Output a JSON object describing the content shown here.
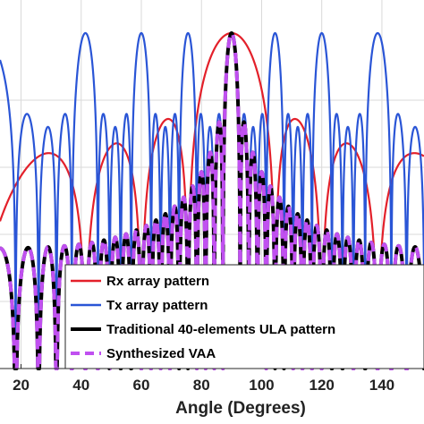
{
  "chart_data": {
    "type": "line",
    "title": "",
    "xlabel": "Angle (Degrees)",
    "ylabel": "",
    "xlim": [
      13,
      154
    ],
    "ylim": [
      -50,
      2
    ],
    "xticks": [
      20,
      40,
      60,
      80,
      100,
      120,
      140
    ],
    "xtick_labels": [
      "20",
      "40",
      "60",
      "80",
      "100",
      "120",
      "140"
    ],
    "grid": true,
    "legend_position": "bottom-right",
    "series": [
      {
        "name": "Rx array pattern",
        "color": "#e3202a",
        "style": "solid",
        "elements": 8,
        "spacing_wavelengths": 0.5,
        "floor_db": -50
      },
      {
        "name": "Tx array pattern",
        "color": "#2a55d6",
        "style": "solid",
        "elements": 5,
        "spacing_wavelengths": 4,
        "floor_db": -50
      },
      {
        "name": "Traditional 40-elements ULA pattern",
        "color": "#000000",
        "style": "solid",
        "elements": 40,
        "spacing_wavelengths": 0.5,
        "floor_db": -50
      },
      {
        "name": "Synthesized VAA",
        "color": "#c050f0",
        "style": "dashed",
        "elements": 40,
        "spacing_wavelengths": 0.5,
        "floor_db": -50
      }
    ]
  }
}
